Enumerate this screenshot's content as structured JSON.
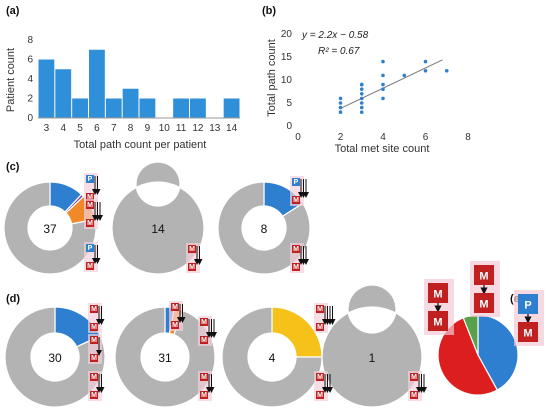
{
  "panels": {
    "a": "(a)",
    "b": "(b)",
    "c": "(c)",
    "d": "(d)",
    "e": "(e)"
  },
  "colors": {
    "bar": "#2f8fd8",
    "blue": "#2e7fd0",
    "orange": "#ee8a2a",
    "gray": "#b3b3b3",
    "yellow": "#f6c21a",
    "purple": "#7c3fa8",
    "green": "#58a04a",
    "red": "#dd1e1e",
    "box_red": "#c0201f",
    "box_blue": "#2e7fd0"
  },
  "chart_data": [
    {
      "id": "a",
      "type": "bar",
      "categories": [
        "3",
        "4",
        "5",
        "6",
        "7",
        "8",
        "9",
        "10",
        "11",
        "12",
        "13",
        "14"
      ],
      "values": [
        6,
        5,
        2,
        7,
        2,
        3,
        2,
        0,
        2,
        2,
        0,
        2
      ],
      "xlabel": "Total path count per patient",
      "ylabel": "Patient count",
      "ylim": [
        0,
        8
      ],
      "yticks": [
        0,
        2,
        4,
        6,
        8
      ],
      "grid": false
    },
    {
      "id": "b",
      "type": "scatter",
      "x": [
        2,
        2,
        2,
        2,
        3,
        3,
        3,
        3,
        3,
        3,
        3,
        3,
        4,
        4,
        4,
        4,
        4,
        5,
        6,
        6,
        7
      ],
      "y": [
        3,
        4,
        5,
        6,
        3,
        4,
        5,
        6,
        7,
        8,
        9,
        9,
        6,
        8,
        9,
        11,
        14,
        11,
        12,
        14,
        12
      ],
      "xlabel": "Total met site count",
      "ylabel": "Total path count",
      "xlim": [
        0,
        8
      ],
      "ylim": [
        0,
        20
      ],
      "xticks": [
        0,
        2,
        4,
        6,
        8
      ],
      "yticks": [
        0,
        5,
        10,
        15,
        20
      ],
      "equation": "y = 2.2x − 0.58",
      "r2": "R² = 0.67",
      "trend": {
        "slope": 2.2,
        "intercept": -0.58
      }
    },
    {
      "id": "c1",
      "type": "pie",
      "center_label": "37",
      "slices": [
        {
          "color": "blue",
          "value": 0.12
        },
        {
          "color": "purple",
          "value": 0.01
        },
        {
          "color": "orange",
          "value": 0.09
        },
        {
          "color": "gray",
          "value": 0.78
        }
      ]
    },
    {
      "id": "c2",
      "type": "pie",
      "center_label": "14",
      "slices": [
        {
          "color": "gray",
          "value": 1.0
        }
      ]
    },
    {
      "id": "c3",
      "type": "pie",
      "center_label": "8",
      "slices": [
        {
          "color": "blue",
          "value": 0.16
        },
        {
          "color": "gray",
          "value": 0.84
        }
      ]
    },
    {
      "id": "d1",
      "type": "pie",
      "center_label": "30",
      "slices": [
        {
          "color": "blue",
          "value": 0.18
        },
        {
          "color": "gray",
          "value": 0.82
        }
      ]
    },
    {
      "id": "d2",
      "type": "pie",
      "center_label": "31",
      "slices": [
        {
          "color": "blue",
          "value": 0.03
        },
        {
          "color": "orange",
          "value": 0.03
        },
        {
          "color": "gray",
          "value": 0.94
        }
      ]
    },
    {
      "id": "d3",
      "type": "pie",
      "center_label": "4",
      "slices": [
        {
          "color": "yellow",
          "value": 0.25
        },
        {
          "color": "gray",
          "value": 0.75
        }
      ]
    },
    {
      "id": "d4",
      "type": "pie",
      "center_label": "1",
      "slices": [
        {
          "color": "gray",
          "value": 1.0
        }
      ]
    },
    {
      "id": "e",
      "type": "pie",
      "slices": [
        {
          "color": "blue",
          "value": 0.42
        },
        {
          "color": "red",
          "value": 0.52
        },
        {
          "color": "green",
          "value": 0.06
        }
      ]
    }
  ],
  "pathway_labels": {
    "metastasis": "M",
    "primary": "P"
  }
}
